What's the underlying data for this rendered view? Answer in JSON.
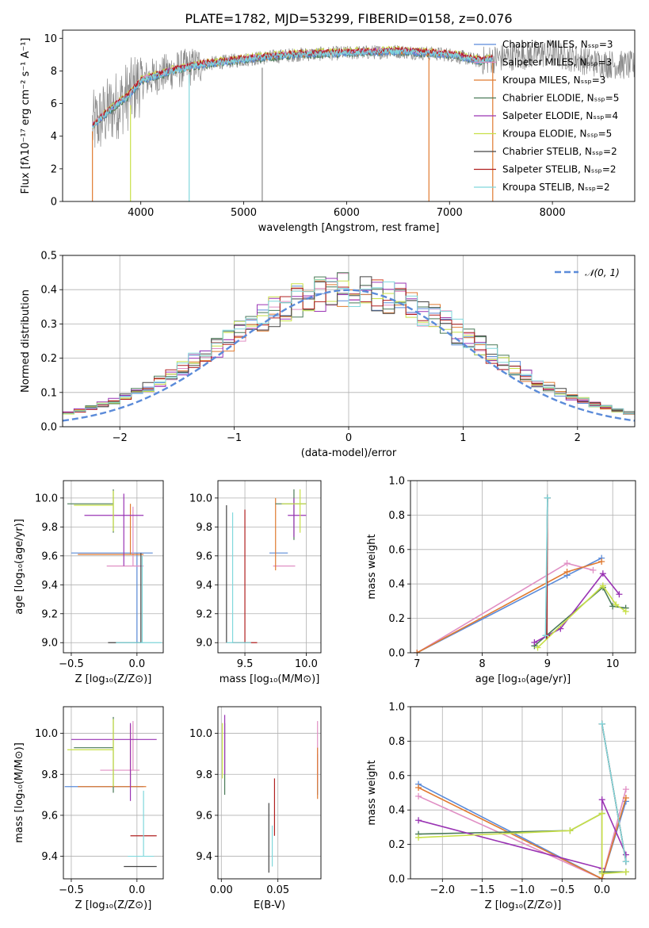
{
  "figure": {
    "title": "PLATE=1782, MJD=53299, FIBERID=0158, z=0.076"
  },
  "colors": {
    "chabrier_miles": "#5b8bd9",
    "salpeter_miles": "#e08fc4",
    "kroupa_miles": "#e07a30",
    "chabrier_elodie": "#4a7a58",
    "salpeter_elodie": "#9a34b4",
    "kroupa_elodie": "#c8e048",
    "chabrier_stelib": "#444444",
    "salpeter_stelib": "#b02020",
    "kroupa_stelib": "#80d8dc",
    "data": "#888888",
    "grid": "#b0b0b0"
  },
  "chart_data": [
    {
      "id": "spectrum",
      "type": "line",
      "xlabel": "wavelength [Angstrom, rest frame]",
      "ylabel": "Flux [fλ10⁻¹⁷ erg cm⁻² s⁻¹ A⁻¹]",
      "xlim": [
        3240,
        8800
      ],
      "ylim": [
        0,
        10.5
      ],
      "xticks": [
        "4000",
        "5000",
        "6000",
        "7000",
        "8000"
      ],
      "yticks": [
        "0",
        "2",
        "4",
        "6",
        "8",
        "10"
      ],
      "grid": false,
      "legend_position": "right",
      "legend": [
        "Chabrier MILES, Nₛₛₚ=3",
        "Salpeter MILES, Nₛₛₚ=3",
        "Kroupa MILES, Nₛₛₚ=3",
        "Chabrier ELODIE, Nₛₛₚ=5",
        "Salpeter ELODIE, Nₛₛₚ=4",
        "Kroupa ELODIE, Nₛₛₚ=5",
        "Chabrier STELIB, Nₛₛₚ=2",
        "Salpeter STELIB, Nₛₛₚ=2",
        "Kroupa STELIB, Nₛₛₚ=2"
      ],
      "data_range_x": [
        3530,
        8800
      ],
      "continuum": [
        [
          3530,
          4.6
        ],
        [
          3700,
          5.6
        ],
        [
          3900,
          6.6
        ],
        [
          4000,
          7.4
        ],
        [
          4300,
          8.0
        ],
        [
          4600,
          8.4
        ],
        [
          5000,
          8.7
        ],
        [
          5500,
          9.0
        ],
        [
          6000,
          9.1
        ],
        [
          6500,
          9.2
        ],
        [
          7000,
          9.0
        ],
        [
          7300,
          8.6
        ],
        [
          7600,
          8.9
        ],
        [
          8000,
          9.1
        ],
        [
          8400,
          8.5
        ],
        [
          8800,
          8.3
        ]
      ],
      "model_range_x": [
        3530,
        7420
      ],
      "drops": [
        [
          3530,
          4.3
        ],
        [
          3900,
          5.9
        ],
        [
          4470,
          7.8
        ],
        [
          5180,
          8.2
        ],
        [
          6800,
          8.8
        ],
        [
          7420,
          8.6
        ]
      ]
    },
    {
      "id": "residuals",
      "type": "histogram",
      "xlabel": "(data-model)/error",
      "ylabel": "Normed distribution",
      "xlim": [
        -2.5,
        2.5
      ],
      "ylim": [
        0,
        0.5
      ],
      "xticks": [
        "−2",
        "−1",
        "0",
        "1",
        "2"
      ],
      "yticks": [
        "0.0",
        "0.1",
        "0.2",
        "0.3",
        "0.4",
        "0.5"
      ],
      "grid": true,
      "legend_position": "top-right",
      "legend_label": "𝒩(0, 1)",
      "bin_width": 0.1
    },
    {
      "id": "age-vs-Z",
      "type": "scatter",
      "xlabel": "Z [log₁₀(Z/Z⊙)]",
      "ylabel": "age  [log₁₀(age/yr)]",
      "xlim": [
        -0.56,
        0.2
      ],
      "ylim": [
        8.93,
        10.12
      ],
      "xticks": [
        "−0.5",
        "0.0"
      ],
      "yticks": [
        "9.0",
        "9.2",
        "9.4",
        "9.6",
        "9.8",
        "10.0"
      ],
      "grid": true,
      "points": [
        {
          "series": "chabrier_miles",
          "x": 0.0,
          "y": 9.62,
          "xerr": [
            0.5,
            0.12
          ],
          "yerr": [
            0.62,
            0.0
          ]
        },
        {
          "series": "salpeter_miles",
          "x": -0.03,
          "y": 9.53,
          "xerr": [
            0.2,
            0.08
          ],
          "yerr": [
            0.0,
            0.41
          ]
        },
        {
          "series": "kroupa_miles",
          "x": -0.05,
          "y": 9.61,
          "xerr": [
            0.4,
            0.1
          ],
          "yerr": [
            0.0,
            0.35
          ]
        },
        {
          "series": "chabrier_elodie",
          "x": -0.18,
          "y": 9.96,
          "xerr": [
            0.35,
            0.0
          ],
          "yerr": [
            0.2,
            0.1
          ]
        },
        {
          "series": "salpeter_elodie",
          "x": -0.1,
          "y": 9.88,
          "xerr": [
            0.3,
            0.15
          ],
          "yerr": [
            0.35,
            0.15
          ]
        },
        {
          "series": "kroupa_elodie",
          "x": -0.18,
          "y": 9.95,
          "xerr": [
            0.3,
            0.0
          ],
          "yerr": [
            0.18,
            0.1
          ]
        },
        {
          "series": "chabrier_stelib",
          "x": 0.03,
          "y": 9.0,
          "xerr": [
            0.25,
            0.0
          ],
          "yerr": [
            0.0,
            0.62
          ]
        },
        {
          "series": "salpeter_stelib",
          "x": 0.03,
          "y": 9.0,
          "xerr": [
            0.0,
            0.0
          ],
          "yerr": [
            0.0,
            0.0
          ]
        },
        {
          "series": "kroupa_stelib",
          "x": 0.04,
          "y": 9.0,
          "xerr": [
            0.2,
            0.15
          ],
          "yerr": [
            0.0,
            0.6
          ]
        }
      ]
    },
    {
      "id": "age-vs-mass",
      "type": "scatter",
      "xlabel": "mass [log₁₀(M/M⊙)]",
      "ylabel": "",
      "xlim": [
        9.28,
        10.12
      ],
      "ylim": [
        8.93,
        10.12
      ],
      "xticks": [
        "9.5",
        "10.0"
      ],
      "yticks": [
        "9.0",
        "9.2",
        "9.4",
        "9.6",
        "9.8",
        "10.0"
      ],
      "grid": true,
      "points": [
        {
          "series": "chabrier_miles",
          "x": 9.75,
          "y": 9.62,
          "xerr": [
            0.05,
            0.1
          ],
          "yerr": [
            0.0,
            0.0
          ]
        },
        {
          "series": "salpeter_miles",
          "x": 9.83,
          "y": 9.53,
          "xerr": [
            0.1,
            0.08
          ],
          "yerr": [
            0.0,
            0.0
          ]
        },
        {
          "series": "kroupa_miles",
          "x": 9.75,
          "y": 9.6,
          "xerr": [
            0.0,
            0.0
          ],
          "yerr": [
            0.1,
            0.4
          ]
        },
        {
          "series": "chabrier_elodie",
          "x": 9.9,
          "y": 9.96,
          "xerr": [
            0.15,
            0.1
          ],
          "yerr": [
            0.25,
            0.1
          ]
        },
        {
          "series": "salpeter_elodie",
          "x": 9.9,
          "y": 9.88,
          "xerr": [
            0.05,
            0.1
          ],
          "yerr": [
            0.15,
            0.12
          ]
        },
        {
          "series": "kroupa_elodie",
          "x": 9.95,
          "y": 9.96,
          "xerr": [
            0.15,
            0.05
          ],
          "yerr": [
            0.2,
            0.1
          ]
        },
        {
          "series": "chabrier_stelib",
          "x": 9.35,
          "y": 9.0,
          "xerr": [
            0.0,
            0.0
          ],
          "yerr": [
            0.0,
            0.95
          ]
        },
        {
          "series": "salpeter_stelib",
          "x": 9.5,
          "y": 9.0,
          "xerr": [
            0.1,
            0.1
          ],
          "yerr": [
            0.0,
            0.92
          ]
        },
        {
          "series": "kroupa_stelib",
          "x": 9.4,
          "y": 9.0,
          "xerr": [
            0.05,
            0.15
          ],
          "yerr": [
            0.0,
            0.9
          ]
        }
      ]
    },
    {
      "id": "weight-vs-age",
      "type": "line",
      "xlabel": "age  [log₁₀(age/yr)]",
      "ylabel": "mass weight",
      "xlim": [
        6.9,
        10.35
      ],
      "ylim": [
        0,
        1.0
      ],
      "xticks": [
        "7",
        "8",
        "9",
        "10"
      ],
      "yticks": [
        "0.0",
        "0.2",
        "0.4",
        "0.6",
        "0.8",
        "1.0"
      ],
      "grid": true,
      "series": [
        {
          "id": "chabrier_miles",
          "points": [
            [
              7.0,
              0.0
            ],
            [
              9.3,
              0.45
            ],
            [
              9.83,
              0.55
            ]
          ]
        },
        {
          "id": "salpeter_miles",
          "points": [
            [
              7.0,
              0.0
            ],
            [
              9.3,
              0.52
            ],
            [
              9.7,
              0.48
            ]
          ]
        },
        {
          "id": "kroupa_miles",
          "points": [
            [
              7.0,
              0.0
            ],
            [
              9.3,
              0.47
            ],
            [
              9.83,
              0.53
            ]
          ]
        },
        {
          "id": "chabrier_elodie",
          "points": [
            [
              8.8,
              0.04
            ],
            [
              9.85,
              0.38
            ],
            [
              10.0,
              0.27
            ],
            [
              10.2,
              0.26
            ]
          ]
        },
        {
          "id": "salpeter_elodie",
          "points": [
            [
              8.8,
              0.06
            ],
            [
              9.2,
              0.14
            ],
            [
              9.85,
              0.46
            ],
            [
              10.1,
              0.34
            ]
          ]
        },
        {
          "id": "kroupa_elodie",
          "points": [
            [
              8.85,
              0.03
            ],
            [
              9.85,
              0.39
            ],
            [
              10.05,
              0.28
            ],
            [
              10.2,
              0.24
            ]
          ]
        },
        {
          "id": "chabrier_stelib",
          "points": [
            [
              8.98,
              0.1
            ],
            [
              9.0,
              0.9
            ]
          ]
        },
        {
          "id": "salpeter_stelib",
          "points": [
            [
              8.99,
              0.1
            ],
            [
              9.0,
              0.9
            ]
          ]
        },
        {
          "id": "kroupa_stelib",
          "points": [
            [
              8.97,
              0.1
            ],
            [
              9.0,
              0.9
            ]
          ]
        }
      ]
    },
    {
      "id": "mass-vs-Z",
      "type": "scatter",
      "xlabel": "Z [log₁₀(Z/Z⊙)]",
      "ylabel": "mass [log₁₀(M/M⊙)]",
      "xlim": [
        -0.56,
        0.2
      ],
      "ylim": [
        9.29,
        10.13
      ],
      "xticks": [
        "−0.5",
        "0.0"
      ],
      "yticks": [
        "9.4",
        "9.6",
        "9.8",
        "10.0"
      ],
      "grid": true,
      "points": [
        {
          "series": "chabrier_miles",
          "x": -0.05,
          "y": 9.74,
          "xerr": [
            0.5,
            0.1
          ],
          "yerr": [
            0.0,
            0.0
          ]
        },
        {
          "series": "salpeter_miles",
          "x": -0.03,
          "y": 9.82,
          "xerr": [
            0.25,
            0.05
          ],
          "yerr": [
            0.0,
            0.24
          ]
        },
        {
          "series": "kroupa_miles",
          "x": -0.05,
          "y": 9.74,
          "xerr": [
            0.4,
            0.12
          ],
          "yerr": [
            0.0,
            0.3
          ]
        },
        {
          "series": "chabrier_elodie",
          "x": -0.18,
          "y": 9.93,
          "xerr": [
            0.3,
            0.0
          ],
          "yerr": [
            0.22,
            0.15
          ]
        },
        {
          "series": "salpeter_elodie",
          "x": -0.05,
          "y": 9.97,
          "xerr": [
            0.45,
            0.2
          ],
          "yerr": [
            0.3,
            0.08
          ]
        },
        {
          "series": "kroupa_elodie",
          "x": -0.18,
          "y": 9.92,
          "xerr": [
            0.35,
            0.0
          ],
          "yerr": [
            0.18,
            0.15
          ]
        },
        {
          "series": "chabrier_stelib",
          "x": 0.05,
          "y": 9.35,
          "xerr": [
            0.15,
            0.1
          ],
          "yerr": [
            0.0,
            0.0
          ]
        },
        {
          "series": "salpeter_stelib",
          "x": 0.05,
          "y": 9.5,
          "xerr": [
            0.1,
            0.1
          ],
          "yerr": [
            0.0,
            0.0
          ]
        },
        {
          "series": "kroupa_stelib",
          "x": 0.05,
          "y": 9.4,
          "xerr": [
            0.12,
            0.08
          ],
          "yerr": [
            0.0,
            0.32
          ]
        }
      ]
    },
    {
      "id": "mass-vs-EBV",
      "type": "scatter",
      "xlabel": "E(B-V)",
      "ylabel": "",
      "xlim": [
        -0.003,
        0.088
      ],
      "ylim": [
        9.29,
        10.13
      ],
      "xticks": [
        "0.00",
        "0.05"
      ],
      "yticks": [
        "9.4",
        "9.6",
        "9.8",
        "10.0"
      ],
      "grid": true,
      "points": [
        {
          "series": "chabrier_miles",
          "x": 0.085,
          "y": 9.8,
          "xerr": [
            0.0,
            0.0
          ],
          "yerr": [
            0.1,
            0.1
          ]
        },
        {
          "series": "salpeter_miles",
          "x": 0.085,
          "y": 9.86,
          "xerr": [
            0.0,
            0.0
          ],
          "yerr": [
            0.1,
            0.2
          ]
        },
        {
          "series": "kroupa_miles",
          "x": 0.085,
          "y": 9.75,
          "xerr": [
            0.0,
            0.0
          ],
          "yerr": [
            0.07,
            0.18
          ]
        },
        {
          "series": "chabrier_elodie",
          "x": 0.003,
          "y": 9.9,
          "xerr": [
            0.0,
            0.0
          ],
          "yerr": [
            0.2,
            0.15
          ]
        },
        {
          "series": "salpeter_elodie",
          "x": 0.003,
          "y": 9.95,
          "xerr": [
            0.0,
            0.0
          ],
          "yerr": [
            0.15,
            0.14
          ]
        },
        {
          "series": "kroupa_elodie",
          "x": 0.001,
          "y": 9.9,
          "xerr": [
            0.0,
            0.0
          ],
          "yerr": [
            0.12,
            0.15
          ]
        },
        {
          "series": "chabrier_stelib",
          "x": 0.042,
          "y": 9.5,
          "xerr": [
            0.0,
            0.0
          ],
          "yerr": [
            0.18,
            0.16
          ]
        },
        {
          "series": "salpeter_stelib",
          "x": 0.047,
          "y": 9.65,
          "xerr": [
            0.0,
            0.0
          ],
          "yerr": [
            0.15,
            0.13
          ]
        },
        {
          "series": "kroupa_stelib",
          "x": 0.045,
          "y": 9.45,
          "xerr": [
            0.0,
            0.0
          ],
          "yerr": [
            0.1,
            0.1
          ]
        }
      ]
    },
    {
      "id": "weight-vs-Z",
      "type": "line",
      "xlabel": "Z [log₁₀(Z/Z⊙)]",
      "ylabel": "mass weight",
      "xlim": [
        -2.4,
        0.42
      ],
      "ylim": [
        0,
        1.0
      ],
      "xticks": [
        "−2.0",
        "−1.5",
        "−1.0",
        "−0.5",
        "0.0"
      ],
      "yticks": [
        "0.0",
        "0.2",
        "0.4",
        "0.6",
        "0.8",
        "1.0"
      ],
      "grid": true,
      "series": [
        {
          "id": "chabrier_miles",
          "points": [
            [
              -2.3,
              0.55
            ],
            [
              0.0,
              0.0
            ],
            [
              0.3,
              0.45
            ]
          ]
        },
        {
          "id": "salpeter_miles",
          "points": [
            [
              -2.3,
              0.48
            ],
            [
              0.0,
              0.0
            ],
            [
              0.3,
              0.52
            ]
          ]
        },
        {
          "id": "kroupa_miles",
          "points": [
            [
              -2.3,
              0.53
            ],
            [
              0.0,
              0.0
            ],
            [
              0.3,
              0.47
            ]
          ]
        },
        {
          "id": "chabrier_elodie",
          "points": [
            [
              -2.3,
              0.26
            ],
            [
              -0.4,
              0.28
            ],
            [
              0.0,
              0.38
            ],
            [
              0.0,
              0.04
            ],
            [
              0.3,
              0.04
            ]
          ]
        },
        {
          "id": "salpeter_elodie",
          "points": [
            [
              -2.3,
              0.34
            ],
            [
              0.0,
              0.06
            ],
            [
              0.0,
              0.46
            ],
            [
              0.3,
              0.14
            ]
          ]
        },
        {
          "id": "kroupa_elodie",
          "points": [
            [
              -2.3,
              0.24
            ],
            [
              -0.4,
              0.28
            ],
            [
              0.0,
              0.38
            ],
            [
              0.0,
              0.03
            ],
            [
              0.3,
              0.04
            ]
          ]
        },
        {
          "id": "chabrier_stelib",
          "points": [
            [
              0.0,
              0.9
            ],
            [
              0.3,
              0.1
            ]
          ]
        },
        {
          "id": "salpeter_stelib",
          "points": [
            [
              0.0,
              0.9
            ],
            [
              0.3,
              0.1
            ]
          ]
        },
        {
          "id": "kroupa_stelib",
          "points": [
            [
              0.0,
              0.9
            ],
            [
              0.3,
              0.1
            ]
          ]
        }
      ]
    }
  ]
}
